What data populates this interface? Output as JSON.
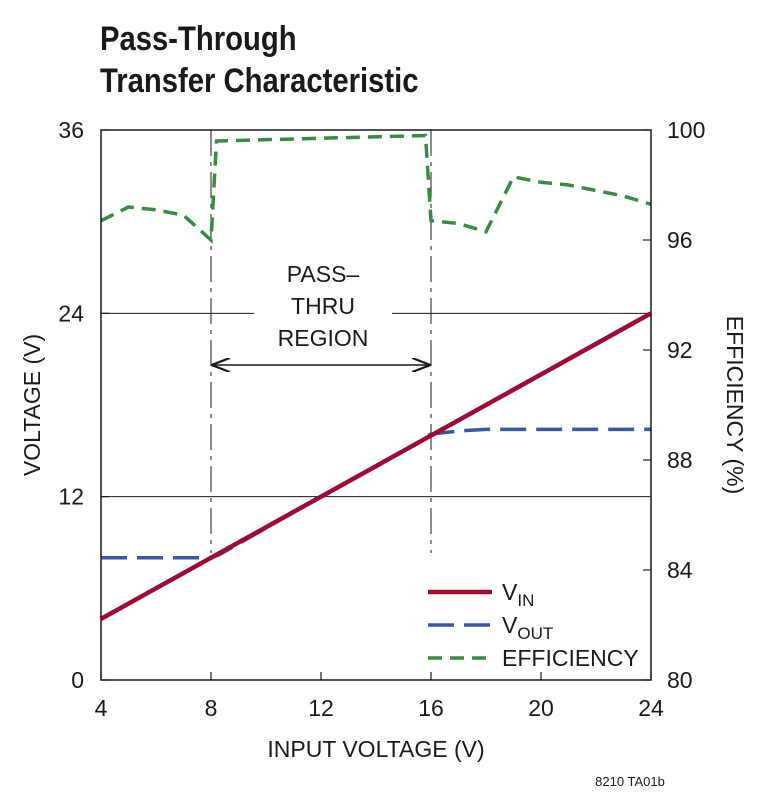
{
  "title_line1": "Pass-Through",
  "title_line2": "Transfer Characteristic",
  "footnote": "8210 TA01b",
  "region_label": [
    "PASS–",
    "THRU",
    "REGION"
  ],
  "colors": {
    "vin": "#9b0b34",
    "vout": "#3a55a8",
    "efficiency": "#3a8a46",
    "axis": "#1a1a1a"
  },
  "chart_data": {
    "type": "line",
    "xlabel": "INPUT VOLTAGE (V)",
    "ylabel": "VOLTAGE  (V)",
    "y2label": "EFFICIENCY (%)",
    "xlim": [
      4,
      24
    ],
    "ylim": [
      0,
      36
    ],
    "y2lim": [
      80,
      100
    ],
    "xticks": [
      4,
      8,
      12,
      16,
      20,
      24
    ],
    "yticks": [
      0,
      12,
      24,
      36
    ],
    "y2ticks": [
      80,
      84,
      88,
      92,
      96,
      100
    ],
    "grid_y": [
      12,
      24
    ],
    "pass_thru_region": [
      8,
      16
    ],
    "legend_position": "bottom-right",
    "legend": [
      {
        "main": "V",
        "sub": "IN"
      },
      {
        "main": "V",
        "sub": "OUT"
      },
      {
        "main": "EFFICIENCY",
        "sub": ""
      }
    ],
    "series": [
      {
        "name": "VIN",
        "axis": "left",
        "style": "solid",
        "x": [
          4,
          24
        ],
        "y": [
          4,
          24
        ]
      },
      {
        "name": "VOUT",
        "axis": "left",
        "style": "dashed",
        "x": [
          4,
          8,
          8.3,
          12,
          15.5,
          16,
          17,
          18,
          24
        ],
        "y": [
          8,
          8,
          8.2,
          12,
          15.5,
          16.1,
          16.3,
          16.4,
          16.4
        ]
      },
      {
        "name": "EFFICIENCY",
        "axis": "right",
        "style": "dashed",
        "x": [
          4,
          5,
          6,
          7,
          8,
          8.2,
          15.8,
          16,
          17,
          18,
          19,
          20,
          21,
          22,
          23,
          24
        ],
        "y": [
          96.7,
          97.2,
          97.1,
          96.9,
          96.0,
          99.6,
          99.8,
          96.7,
          96.6,
          96.3,
          98.3,
          98.1,
          98.0,
          97.8,
          97.6,
          97.3
        ]
      }
    ]
  }
}
